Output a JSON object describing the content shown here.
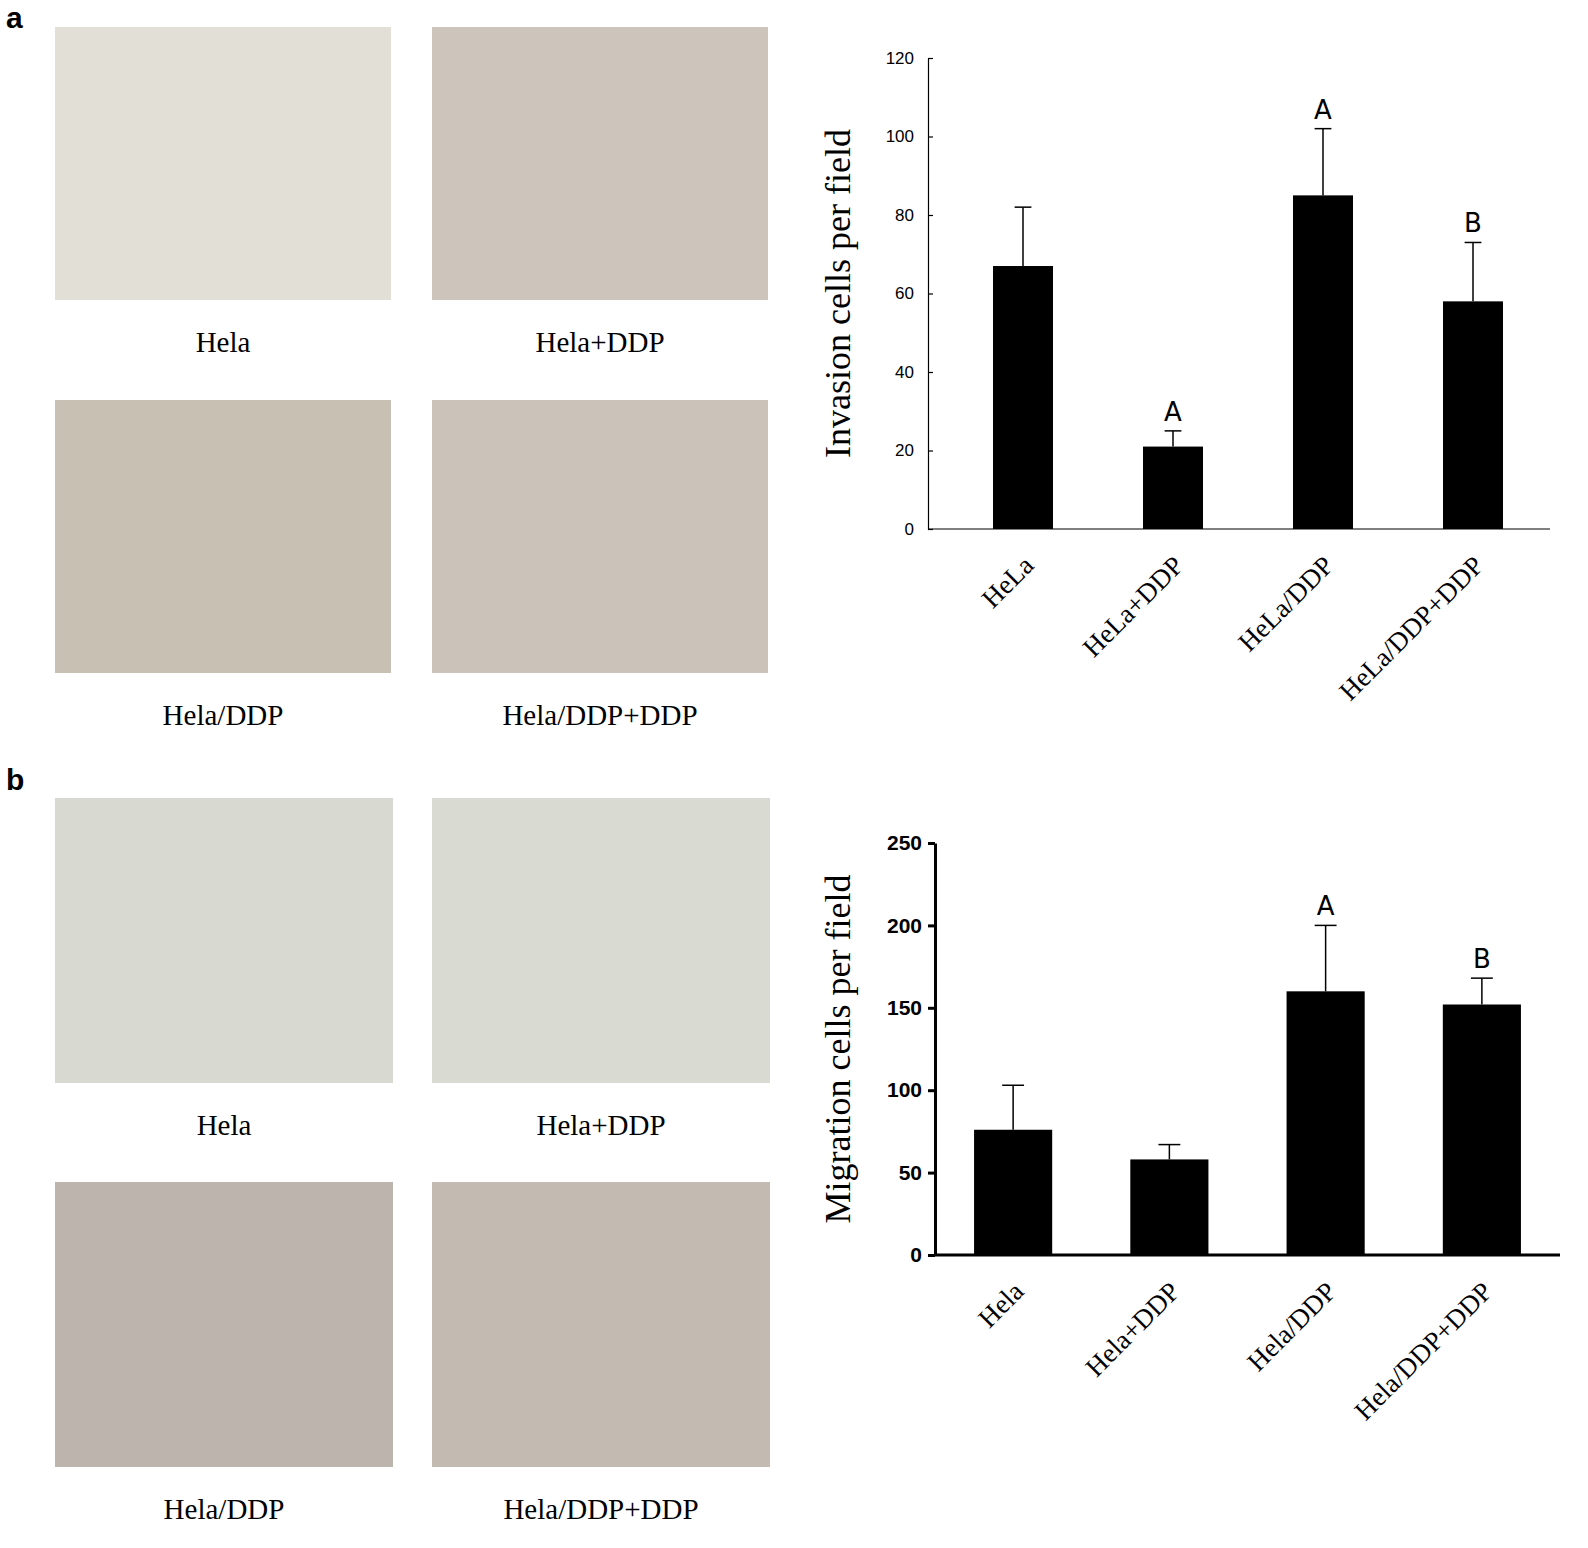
{
  "figure": {
    "panels": [
      {
        "label": "a",
        "images": [
          "Hela",
          "Hela+DDP",
          "Hela/DDP",
          "Hela/DDP+DDP"
        ]
      },
      {
        "label": "b",
        "images": [
          "Hela",
          "Hela+DDP",
          "Hela/DDP",
          "Hela/DDP+DDP"
        ]
      }
    ]
  },
  "chart_data": [
    {
      "type": "bar",
      "y_label": "Invasion cells per field",
      "categories": [
        "HeLa",
        "HeLa+DDP",
        "HeLa/DDP",
        "HeLa/DDP+DDP"
      ],
      "values": [
        67,
        21,
        85,
        58
      ],
      "errors": [
        15,
        4,
        17,
        15
      ],
      "letters": [
        null,
        "A",
        "A",
        "B"
      ],
      "color": "#000000",
      "ylim": [
        0,
        120
      ],
      "yticks": [
        0,
        20,
        40,
        60,
        80,
        100,
        120
      ]
    },
    {
      "type": "bar",
      "y_label": "Migration cells per field",
      "categories": [
        "Hela",
        "Hela+DDP",
        "Hela/DDP",
        "Hela/DDP+DDP"
      ],
      "values": [
        76,
        58,
        160,
        152
      ],
      "errors": [
        27,
        9,
        40,
        16
      ],
      "letters": [
        null,
        null,
        "A",
        "B"
      ],
      "color": "#000000",
      "ylim": [
        0,
        250
      ],
      "yticks": [
        0,
        50,
        100,
        150,
        200,
        250
      ]
    }
  ]
}
